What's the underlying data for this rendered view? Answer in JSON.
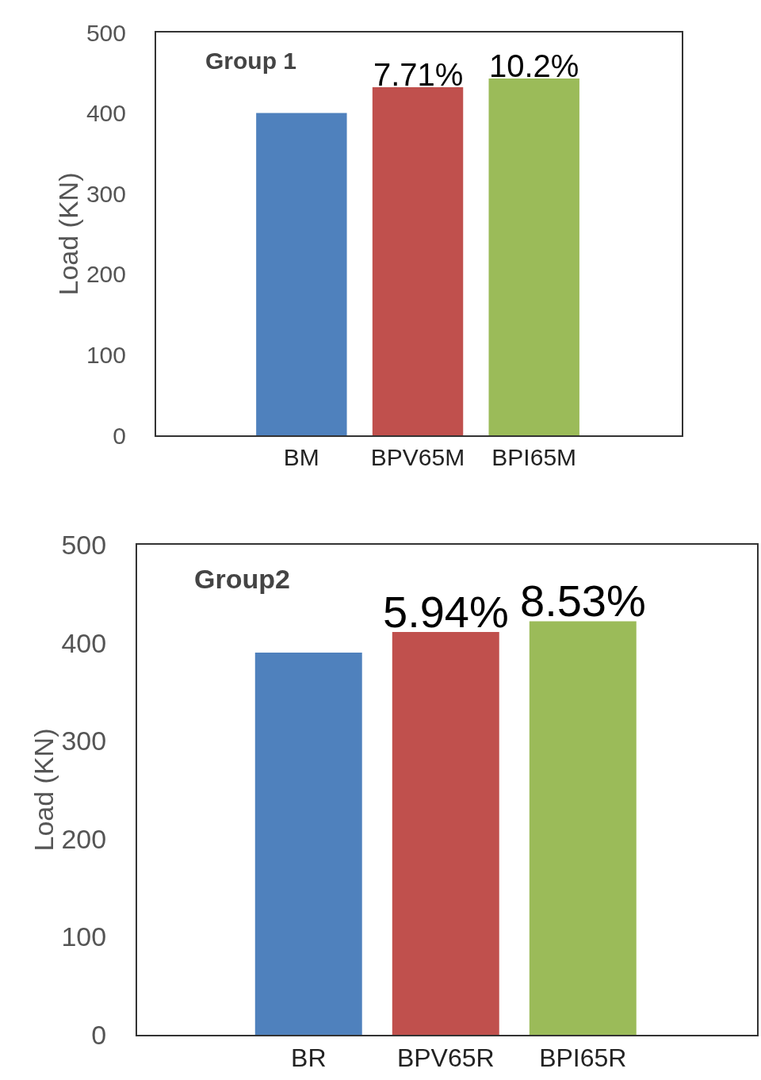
{
  "chart_data": [
    {
      "type": "bar",
      "ylabel": "Load (KN)",
      "categories": [
        "BM",
        "BPV65M",
        "BPI65M"
      ],
      "values": [
        400,
        432,
        443
      ],
      "colors": [
        "#4f81bd",
        "#c0504d",
        "#9bbb59"
      ],
      "ylim": [
        0,
        500
      ],
      "yticks": [
        0,
        100,
        200,
        300,
        400,
        500
      ],
      "grid": false,
      "annotations": [
        "Group 1",
        {
          "text": "7.71%",
          "x": "BPV65M",
          "y": 432
        },
        {
          "text": "10.2%",
          "x": "BPI65M",
          "y": 443
        }
      ]
    },
    {
      "type": "bar",
      "ylabel": "Load (KN)",
      "categories": [
        "BR",
        "BPV65R",
        "BPI65R"
      ],
      "values": [
        390,
        411,
        422
      ],
      "colors": [
        "#4f81bd",
        "#c0504d",
        "#9bbb59"
      ],
      "ylim": [
        0,
        500
      ],
      "yticks": [
        0,
        100,
        200,
        300,
        400,
        500
      ],
      "grid": false,
      "annotations": [
        "Group2",
        {
          "text": "5.94%",
          "x": "BPV65R",
          "y": 411
        },
        {
          "text": "8.53%",
          "x": "BPI65R",
          "y": 422
        }
      ]
    }
  ]
}
